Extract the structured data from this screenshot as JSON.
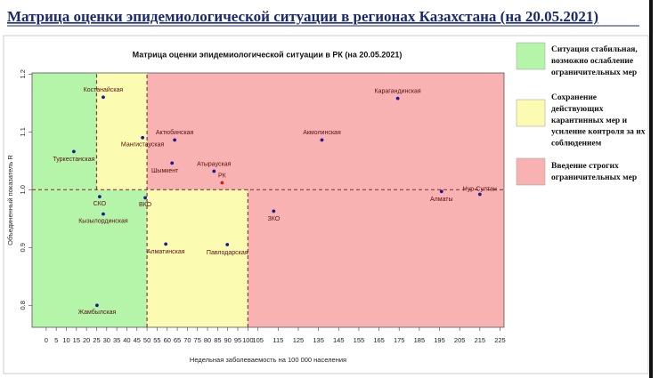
{
  "page_title": "Матрица оценки эпидемиологической ситуации в регионах Казахстана (на 20.05.2021)",
  "chart_data": {
    "type": "scatter",
    "title": "Матрица оценки эпидемиологической ситуации в РК (на 20.05.2021)",
    "x_label": "Недельная заболеваемость на 100 000 населения",
    "y_label": "Объединенный показатель R",
    "xlim": [
      -7,
      227
    ],
    "ylim": [
      0.762,
      1.202
    ],
    "xticks": [
      0,
      5,
      10,
      15,
      20,
      25,
      30,
      35,
      40,
      45,
      50,
      55,
      60,
      65,
      70,
      75,
      80,
      85,
      90,
      95,
      100,
      105,
      115,
      125,
      135,
      145,
      155,
      165,
      175,
      185,
      195,
      205,
      215,
      225
    ],
    "yticks": [
      {
        "value": 0.8,
        "label": "0.8"
      },
      {
        "value": 0.9,
        "label": "0.9"
      },
      {
        "value": 1.0,
        "label": "1.0"
      },
      {
        "value": 1.1,
        "label": "1.1"
      },
      {
        "value": 1.2,
        "label": "1.2"
      }
    ],
    "zones": [
      {
        "x": [
          -7,
          25
        ],
        "y": [
          1.0,
          1.202
        ],
        "color": "#b5f5aa"
      },
      {
        "x": [
          -7,
          50
        ],
        "y": [
          0.762,
          1.0
        ],
        "color": "#b5f5aa"
      },
      {
        "x": [
          25,
          50
        ],
        "y": [
          1.0,
          1.202
        ],
        "color": "#fbfbb2"
      },
      {
        "x": [
          50,
          100
        ],
        "y": [
          0.762,
          1.0
        ],
        "color": "#fbfbb2"
      },
      {
        "x": [
          50,
          227
        ],
        "y": [
          1.0,
          1.202
        ],
        "color": "#f8b2b2"
      },
      {
        "x": [
          100,
          227
        ],
        "y": [
          0.762,
          1.0
        ],
        "color": "#f8b2b2"
      }
    ],
    "thresholds_x": [
      {
        "x": 25,
        "y": [
          1.0,
          1.202
        ]
      },
      {
        "x": 50,
        "y": [
          0.762,
          1.202
        ]
      },
      {
        "x": 100,
        "y": [
          0.762,
          1.0
        ]
      }
    ],
    "threshold_y": 1.0,
    "threshold_color": "#8b3a3a",
    "point_labels": [
      "Костанайская",
      "Туркестанская",
      "Мангистауская",
      "Актюбинская",
      "Шымкент",
      "Атырауская",
      "РК",
      "Карагандинская",
      "Акмолинская",
      "Нур-Султан",
      "Алматы",
      "ЗКО",
      "СКО",
      "ВКО",
      "Кызылординская",
      "Алматинская",
      "Павлодарская",
      "Жамбылская"
    ],
    "x": [
      28.3,
      13.7,
      47.8,
      63.7,
      62.4,
      83.2,
      87.2,
      174.3,
      136.7,
      215,
      196,
      112.8,
      26.5,
      49.1,
      28.3,
      59.3,
      89.8,
      25.2
    ],
    "values": [
      1.16,
      1.066,
      1.09,
      1.086,
      1.046,
      1.032,
      1.012,
      1.158,
      1.086,
      0.992,
      0.997,
      0.963,
      0.988,
      0.986,
      0.958,
      0.906,
      0.905,
      0.8
    ],
    "colors": [
      "#1a1a9a",
      "#1a1a9a",
      "#1a1a9a",
      "#1a1a9a",
      "#1a1a9a",
      "#1a1a9a",
      "#e01818",
      "#1a1a9a",
      "#1a1a9a",
      "#1a1a9a",
      "#1a1a9a",
      "#1a1a9a",
      "#1a1a9a",
      "#1a1a9a",
      "#1a1a9a",
      "#1a1a9a",
      "#1a1a9a",
      "#1a1a9a"
    ],
    "legend": [
      {
        "lines": [
          "Ситуация стабильная,",
          "возможно ослабление",
          "ограничительных мер"
        ],
        "color": "#b5f5aa"
      },
      {
        "lines": [
          "Сохранение",
          "действующих",
          "карантинных мер и",
          "усиление контроля за их",
          "соблюдением"
        ],
        "color": "#fbfbb2"
      },
      {
        "lines": [
          "Введение строгих",
          "ограничительных мер"
        ],
        "color": "#f8b2b2"
      }
    ]
  }
}
